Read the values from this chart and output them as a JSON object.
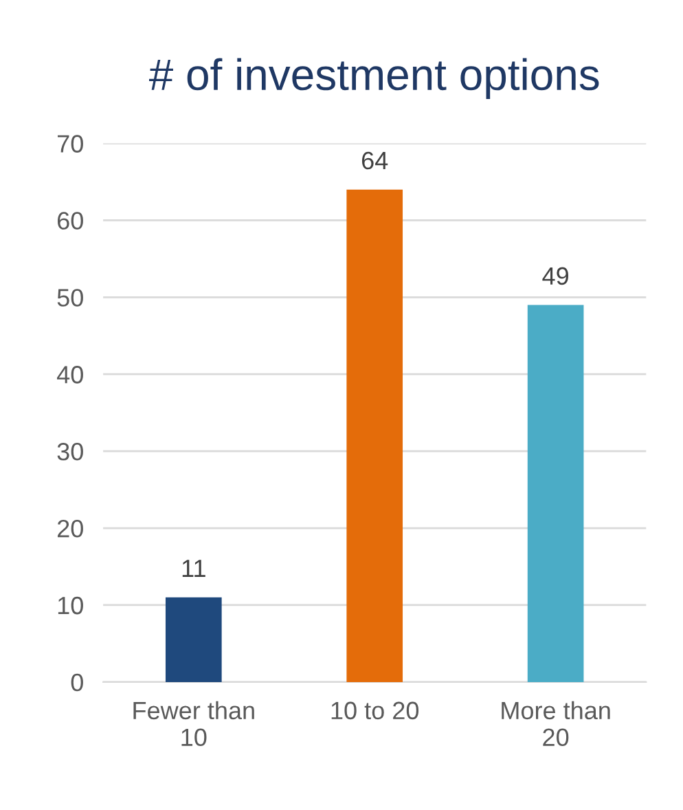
{
  "chart_data": {
    "type": "bar",
    "title": "# of investment options",
    "categories": [
      "Fewer than\n10",
      "10 to 20",
      "More than\n20"
    ],
    "values": [
      11,
      64,
      49
    ],
    "colors": [
      "#1f497d",
      "#e46c0a",
      "#4bacc6"
    ],
    "ylim": [
      0,
      70
    ],
    "yticks": [
      0,
      10,
      20,
      30,
      40,
      50,
      60,
      70
    ],
    "grid": "y",
    "data_labels": true
  }
}
